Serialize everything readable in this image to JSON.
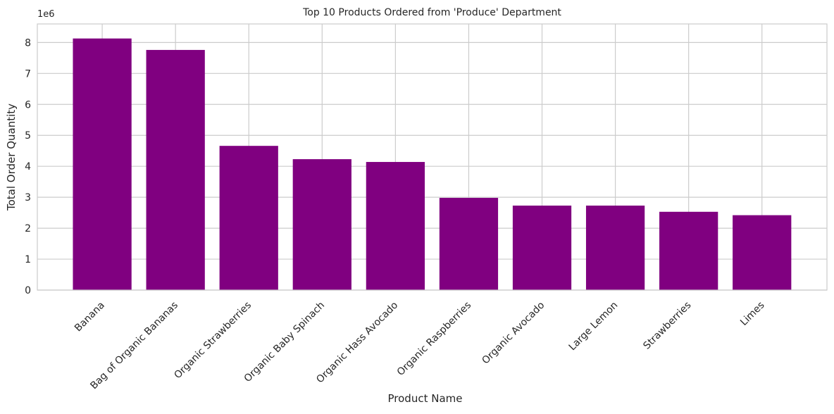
{
  "chart_data": {
    "type": "bar",
    "title": "Top 10 Products Ordered from 'Produce' Department",
    "xlabel": "Product Name",
    "ylabel": "Total Order Quantity",
    "offset_label": "1e6",
    "categories": [
      "Banana",
      "Bag of Organic Bananas",
      "Organic Strawberries",
      "Organic Baby Spinach",
      "Organic Hass Avocado",
      "Organic Raspberries",
      "Organic Avocado",
      "Large Lemon",
      "Strawberries",
      "Limes"
    ],
    "values": [
      8130000,
      7760000,
      4660000,
      4230000,
      4140000,
      2980000,
      2730000,
      2730000,
      2530000,
      2420000
    ],
    "ylim": [
      0,
      8600000
    ],
    "yticks": [
      0,
      1,
      2,
      3,
      4,
      5,
      6,
      7,
      8
    ],
    "bar_color": "#800080",
    "grid": true,
    "grid_color": "#cccccc",
    "tick_label_rotation": 45
  }
}
